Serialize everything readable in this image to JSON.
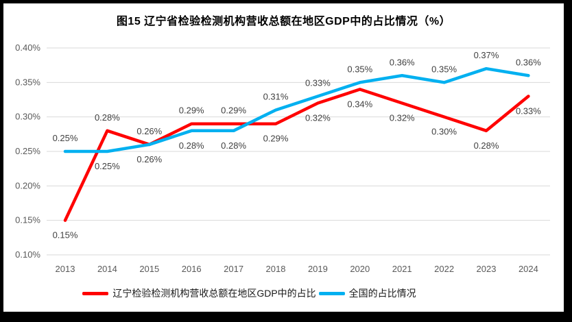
{
  "title": "图15 辽宁省检验检测机构营收总额在地区GDP中的占比情况（%）",
  "chart_data": {
    "type": "line",
    "title": "图15 辽宁省检验检测机构营收总额在地区GDP中的占比情况（%）",
    "categories": [
      "2013",
      "2014",
      "2015",
      "2016",
      "2017",
      "2018",
      "2019",
      "2020",
      "2021",
      "2022",
      "2023",
      "2024"
    ],
    "series": [
      {
        "name": "辽宁检验检测机构营收总额在地区GDP中的占比",
        "color": "#FF0000",
        "values": [
          0.15,
          0.28,
          0.26,
          0.29,
          0.29,
          0.29,
          0.32,
          0.34,
          0.32,
          0.3,
          0.28,
          0.33
        ],
        "labels": [
          "0.15%",
          "0.28%",
          "0.26%",
          "0.29%",
          "0.29%",
          "0.29%",
          "0.32%",
          "0.34%",
          "0.32%",
          "0.30%",
          "0.28%",
          "0.33%"
        ],
        "label_side": [
          "below",
          "above",
          "above",
          "above",
          "above",
          "below",
          "below",
          "below",
          "below",
          "below",
          "below",
          "below"
        ]
      },
      {
        "name": "全国的占比情况",
        "color": "#00B0F0",
        "values": [
          0.25,
          0.25,
          0.26,
          0.28,
          0.28,
          0.31,
          0.33,
          0.35,
          0.36,
          0.35,
          0.37,
          0.36
        ],
        "labels": [
          "0.25%",
          "0.25%",
          "0.26%",
          "0.28%",
          "0.28%",
          "0.31%",
          "0.33%",
          "0.35%",
          "0.36%",
          "0.35%",
          "0.37%",
          "0.36%"
        ],
        "label_side": [
          "above",
          "below",
          "below",
          "below",
          "below",
          "above",
          "above",
          "above",
          "above",
          "above",
          "above",
          "above"
        ]
      }
    ],
    "xlabel": "",
    "ylabel": "",
    "ylim": [
      0.1,
      0.4
    ],
    "ytick_step": 0.05,
    "ytick_labels": [
      "0.10%",
      "0.15%",
      "0.20%",
      "0.25%",
      "0.30%",
      "0.35%",
      "0.40%"
    ],
    "grid": true,
    "legend_position": "bottom",
    "colors": {
      "grid": "#D9D9D9",
      "axis_text": "#595959",
      "data_label": "#404040",
      "title_text": "#000000"
    }
  }
}
